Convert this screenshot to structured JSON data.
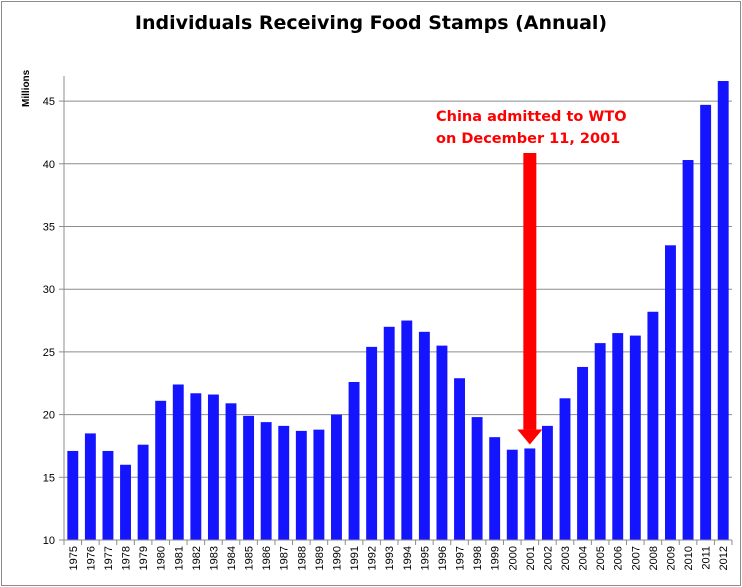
{
  "chart_data": {
    "type": "bar",
    "title": "Individuals Receiving Food Stamps (Annual)",
    "ylabel": "Millions",
    "xlabel": "",
    "ylim": [
      10,
      47
    ],
    "yticks": [
      10,
      15,
      20,
      25,
      30,
      35,
      40,
      45
    ],
    "grid": true,
    "bar_color": "#1414ff",
    "categories": [
      "1975",
      "1976",
      "1977",
      "1978",
      "1979",
      "1980",
      "1981",
      "1982",
      "1983",
      "1984",
      "1985",
      "1986",
      "1987",
      "1988",
      "1989",
      "1990",
      "1991",
      "1992",
      "1993",
      "1994",
      "1995",
      "1996",
      "1997",
      "1998",
      "1999",
      "2000",
      "2001",
      "2002",
      "2003",
      "2004",
      "2005",
      "2006",
      "2007",
      "2008",
      "2009",
      "2010",
      "2011",
      "2012"
    ],
    "values": [
      17.1,
      18.5,
      17.1,
      16.0,
      17.6,
      21.1,
      22.4,
      21.7,
      21.6,
      20.9,
      19.9,
      19.4,
      19.1,
      18.7,
      18.8,
      20.0,
      22.6,
      25.4,
      27.0,
      27.5,
      26.6,
      25.5,
      22.9,
      19.8,
      18.2,
      17.2,
      17.3,
      19.1,
      21.3,
      23.8,
      25.7,
      26.5,
      26.3,
      28.2,
      33.5,
      40.3,
      44.7,
      46.6
    ],
    "annotation": {
      "lines": [
        "China admitted to WTO",
        "on December 11, 2001"
      ],
      "target_category": "2001",
      "color": "#ff0000"
    }
  }
}
